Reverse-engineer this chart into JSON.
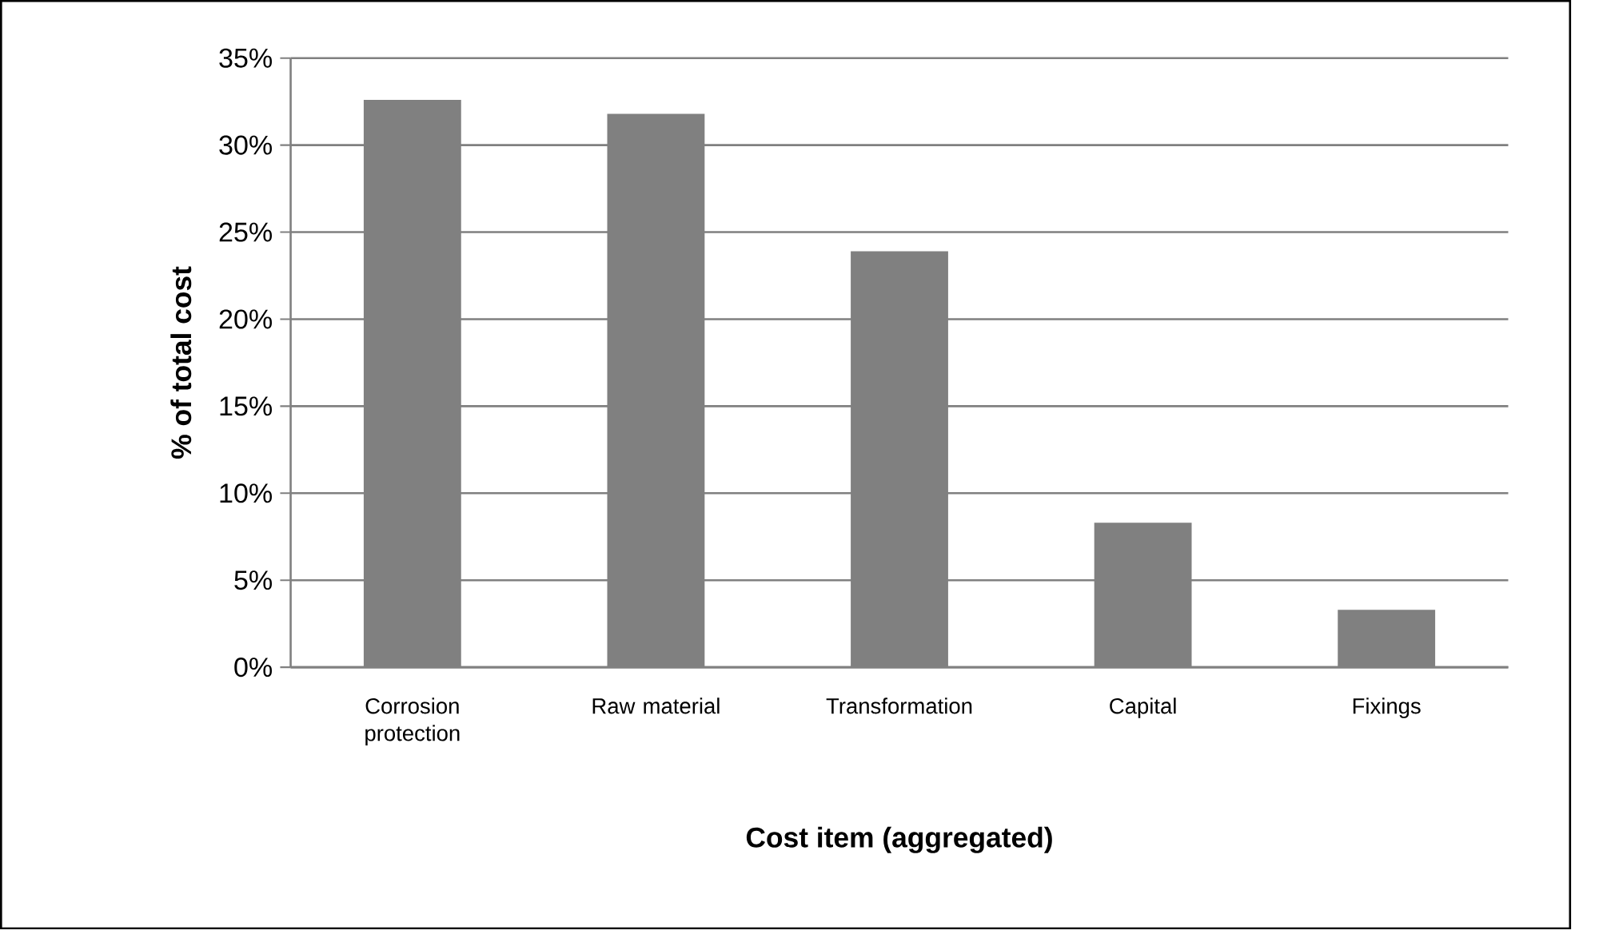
{
  "chart_data": {
    "type": "bar",
    "xlabel": "Cost item (aggregated)",
    "ylabel": "% of total cost",
    "categories": [
      "Corrosion protection",
      "Raw material",
      "Transformation",
      "Capital",
      "Fixings"
    ],
    "values": [
      32.6,
      31.8,
      23.9,
      8.3,
      3.3
    ],
    "color": "#808080",
    "ylim": [
      0,
      35
    ],
    "yticks": [
      {
        "value": 0,
        "label": "0%"
      },
      {
        "value": 5,
        "label": "5%"
      },
      {
        "value": 10,
        "label": "10%"
      },
      {
        "value": 15,
        "label": "15%"
      },
      {
        "value": 20,
        "label": "20%"
      },
      {
        "value": 25,
        "label": "25%"
      },
      {
        "value": 30,
        "label": "30%"
      },
      {
        "value": 35,
        "label": "35%"
      }
    ],
    "grid": "y"
  }
}
